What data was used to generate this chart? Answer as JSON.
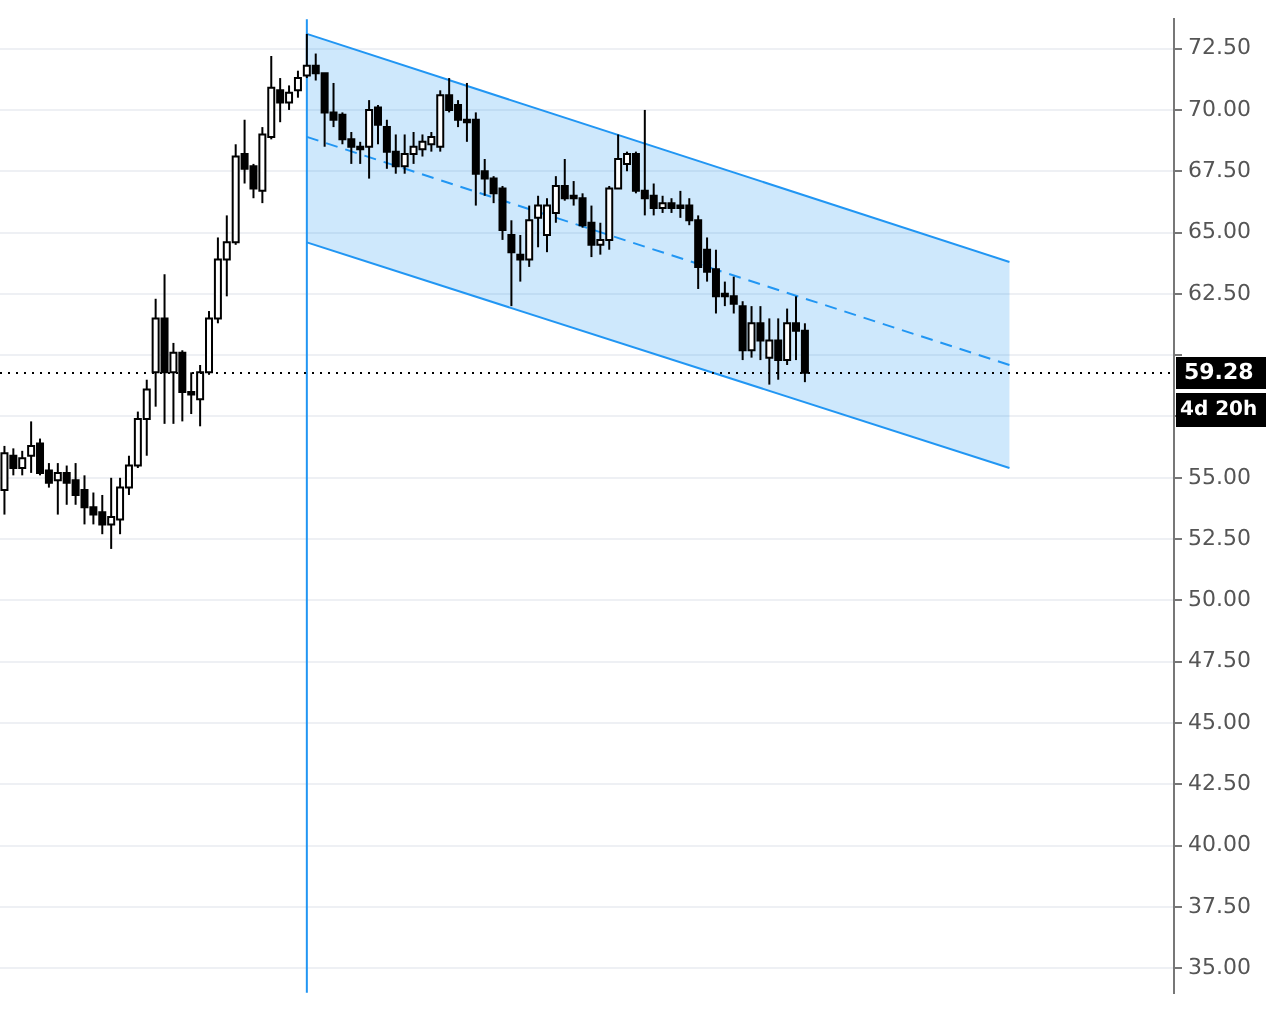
{
  "chart_data": {
    "type": "candlestick",
    "color": "#000000",
    "legend": false,
    "grid": "y",
    "tick_labels": "y",
    "colors": [
      "#ffffff",
      "#000000",
      "#ffffff",
      "#ffffff",
      "#000000",
      "#000000",
      "#ffffff",
      "#000000",
      "#000000",
      "#000000",
      "#000000",
      "#000000",
      "#ffffff",
      "#ffffff",
      "#ffffff",
      "#ffffff",
      "#ffffff",
      "#ffffff",
      "#000000",
      "#ffffff",
      "#000000",
      "#000000",
      "#ffffff",
      "#ffffff",
      "#ffffff",
      "#ffffff",
      "#ffffff",
      "#000000",
      "#000000",
      "#ffffff",
      "#ffffff",
      "#000000",
      "#ffffff",
      "#ffffff",
      "#ffffff",
      "#000000",
      "#000000",
      "#000000",
      "#000000",
      "#000000",
      "#000000",
      "#ffffff",
      "#000000",
      "#000000",
      "#000000",
      "#ffffff",
      "#ffffff",
      "#ffffff",
      "#ffffff",
      "#ffffff",
      "#000000",
      "#000000",
      "#000000",
      "#000000",
      "#000000",
      "#000000",
      "#000000",
      "#000000",
      "#000000",
      "#ffffff",
      "#ffffff",
      "#ffffff",
      "#ffffff",
      "#000000",
      "#000000",
      "#000000",
      "#000000",
      "#ffffff",
      "#ffffff",
      "#ffffff",
      "#ffffff",
      "#000000",
      "#000000",
      "#000000",
      "#ffffff",
      "#000000",
      "#000000",
      "#000000",
      "#000000",
      "#000000",
      "#000000",
      "#000000",
      "#000000",
      "#000000",
      "#ffffff",
      "#000000",
      "#ffffff",
      "#000000",
      "#ffffff",
      "#000000",
      "#000000",
      null,
      null,
      null,
      null,
      null,
      null,
      null,
      null,
      null,
      null,
      null,
      null,
      null,
      null,
      null,
      null,
      null,
      null,
      null,
      null,
      null,
      null,
      null,
      null,
      null,
      null,
      null,
      null,
      null,
      null,
      null,
      null,
      null,
      null,
      null,
      null,
      null,
      null,
      null,
      null,
      null
    ],
    "categories": [
      null,
      null,
      null,
      null,
      null,
      null,
      null,
      null,
      null,
      null,
      null,
      null,
      null,
      null,
      null,
      null,
      null,
      null,
      null,
      null,
      null,
      null,
      null,
      null,
      null,
      null,
      null,
      null,
      null,
      null,
      null,
      null,
      null,
      null,
      null,
      null,
      null,
      null,
      null,
      null,
      null,
      null,
      null,
      null,
      null,
      null,
      null,
      null,
      null,
      null,
      null,
      null,
      null,
      null,
      null,
      null,
      null,
      null,
      null,
      null,
      null,
      null,
      null,
      null,
      null,
      null,
      null,
      null,
      null,
      null,
      null,
      null,
      null,
      null,
      null,
      null,
      null,
      null,
      null,
      null,
      null,
      null,
      null,
      null,
      null,
      null,
      null,
      null,
      null,
      null,
      null,
      null,
      null,
      null,
      null,
      null,
      null,
      null,
      null,
      null,
      null,
      null,
      null,
      null,
      null,
      null,
      null,
      null,
      null,
      null,
      null,
      null,
      null,
      null,
      null,
      null,
      null,
      null,
      null,
      null,
      null,
      null,
      null,
      null,
      null,
      null,
      null,
      null,
      null,
      null,
      null,
      null
    ],
    "ohlc": [
      [
        54.5,
        56.3,
        53.5,
        56.0
      ],
      [
        55.9,
        56.2,
        55.1,
        55.4
      ],
      [
        55.4,
        56.1,
        55.1,
        55.8
      ],
      [
        55.9,
        57.3,
        55.2,
        56.3
      ],
      [
        56.4,
        56.6,
        55.1,
        55.2
      ],
      [
        55.3,
        55.6,
        54.6,
        54.8
      ],
      [
        54.9,
        55.6,
        53.5,
        55.2
      ],
      [
        55.2,
        55.5,
        53.9,
        54.8
      ],
      [
        54.9,
        55.6,
        53.9,
        54.3
      ],
      [
        54.5,
        55.1,
        53.1,
        53.8
      ],
      [
        53.8,
        54.4,
        53.1,
        53.5
      ],
      [
        53.6,
        54.3,
        52.7,
        53.1
      ],
      [
        53.1,
        55.0,
        52.1,
        53.4
      ],
      [
        53.3,
        55.0,
        52.7,
        54.6
      ],
      [
        54.6,
        55.9,
        54.3,
        55.5
      ],
      [
        55.5,
        57.7,
        55.4,
        57.4
      ],
      [
        57.4,
        59.0,
        55.9,
        58.6
      ],
      [
        59.3,
        62.3,
        57.9,
        61.5
      ],
      [
        61.5,
        63.3,
        57.2,
        59.3
      ],
      [
        59.3,
        60.5,
        57.2,
        60.1
      ],
      [
        60.1,
        60.2,
        57.3,
        58.5
      ],
      [
        58.5,
        59.3,
        57.6,
        58.4
      ],
      [
        58.2,
        59.6,
        57.1,
        59.3
      ],
      [
        59.3,
        61.8,
        59.2,
        61.5
      ],
      [
        61.5,
        64.8,
        61.3,
        63.9
      ],
      [
        63.9,
        65.7,
        62.4,
        64.6
      ],
      [
        64.6,
        68.6,
        64.5,
        68.1
      ],
      [
        68.2,
        69.6,
        67.0,
        67.6
      ],
      [
        67.7,
        67.8,
        66.4,
        66.8
      ],
      [
        66.7,
        69.3,
        66.2,
        69.0
      ],
      [
        68.9,
        72.2,
        68.8,
        70.9
      ],
      [
        70.8,
        71.3,
        69.5,
        70.3
      ],
      [
        70.3,
        71.0,
        70.0,
        70.7
      ],
      [
        70.8,
        71.6,
        70.5,
        71.3
      ],
      [
        71.4,
        73.1,
        71.3,
        71.8
      ],
      [
        71.8,
        72.3,
        71.2,
        71.5
      ],
      [
        71.5,
        71.5,
        68.5,
        69.9
      ],
      [
        69.9,
        71.1,
        69.3,
        69.6
      ],
      [
        69.8,
        69.9,
        68.6,
        68.8
      ],
      [
        68.8,
        69.1,
        67.8,
        68.5
      ],
      [
        68.5,
        68.7,
        67.8,
        68.4
      ],
      [
        68.5,
        70.4,
        67.2,
        70.0
      ],
      [
        70.1,
        70.2,
        68.6,
        69.4
      ],
      [
        69.3,
        69.6,
        67.6,
        68.3
      ],
      [
        68.3,
        69.0,
        67.4,
        67.7
      ],
      [
        67.7,
        69.0,
        67.4,
        68.2
      ],
      [
        68.2,
        69.1,
        67.8,
        68.5
      ],
      [
        68.4,
        69.0,
        68.1,
        68.7
      ],
      [
        68.6,
        69.1,
        68.3,
        68.9
      ],
      [
        68.5,
        70.8,
        68.3,
        70.6
      ],
      [
        70.6,
        71.3,
        69.9,
        70.0
      ],
      [
        70.2,
        70.4,
        69.3,
        69.6
      ],
      [
        69.6,
        71.1,
        68.7,
        69.5
      ],
      [
        69.6,
        69.9,
        66.1,
        67.4
      ],
      [
        67.5,
        68.0,
        66.5,
        67.2
      ],
      [
        67.2,
        67.3,
        66.2,
        66.6
      ],
      [
        66.8,
        66.9,
        64.7,
        65.1
      ],
      [
        64.9,
        65.5,
        62.0,
        64.2
      ],
      [
        64.1,
        64.9,
        63.0,
        63.9
      ],
      [
        63.9,
        66.1,
        63.6,
        65.5
      ],
      [
        65.6,
        66.5,
        64.4,
        66.1
      ],
      [
        64.9,
        66.4,
        64.2,
        66.1
      ],
      [
        65.8,
        67.3,
        65.4,
        66.9
      ],
      [
        66.9,
        68.0,
        66.3,
        66.4
      ],
      [
        66.5,
        67.1,
        66.1,
        66.4
      ],
      [
        66.4,
        66.6,
        65.2,
        65.3
      ],
      [
        65.4,
        66.1,
        64.0,
        64.5
      ],
      [
        64.5,
        65.4,
        64.1,
        64.7
      ],
      [
        64.7,
        66.9,
        64.3,
        66.8
      ],
      [
        66.8,
        69.0,
        66.8,
        68.0
      ],
      [
        67.8,
        68.3,
        67.5,
        68.2
      ],
      [
        68.2,
        68.3,
        66.6,
        66.7
      ],
      [
        66.7,
        70.0,
        65.7,
        66.4
      ],
      [
        66.5,
        67.0,
        65.7,
        66.0
      ],
      [
        66.0,
        66.5,
        65.8,
        66.2
      ],
      [
        66.2,
        66.4,
        65.8,
        66.0
      ],
      [
        66.1,
        66.7,
        65.6,
        66.0
      ],
      [
        66.1,
        66.4,
        65.3,
        65.5
      ],
      [
        65.5,
        65.7,
        62.7,
        63.6
      ],
      [
        64.3,
        64.8,
        63.0,
        63.4
      ],
      [
        63.5,
        64.3,
        61.7,
        62.4
      ],
      [
        62.5,
        63.0,
        62.0,
        62.4
      ],
      [
        62.4,
        63.2,
        61.7,
        62.1
      ],
      [
        62.0,
        62.2,
        59.8,
        60.2
      ],
      [
        60.2,
        62.0,
        59.9,
        61.3
      ],
      [
        61.3,
        62.0,
        59.8,
        60.6
      ],
      [
        59.9,
        61.5,
        58.8,
        60.6
      ],
      [
        60.6,
        61.5,
        59.0,
        59.8
      ],
      [
        59.8,
        61.9,
        59.6,
        61.3
      ],
      [
        61.3,
        62.4,
        59.8,
        61.0
      ],
      [
        61.0,
        61.3,
        58.9,
        59.28
      ],
      null,
      null,
      null,
      null,
      null,
      null,
      null,
      null,
      null,
      null,
      null,
      null,
      null,
      null,
      null,
      null,
      null,
      null,
      null,
      null,
      null,
      null,
      null,
      null,
      null,
      null,
      null,
      null,
      null,
      null,
      null,
      null,
      null,
      null,
      null,
      null,
      null,
      null,
      null,
      null,
      null
    ],
    "series": [
      {
        "type": "line",
        "color": "#2196f3",
        "line_style": "dashed",
        "values": [
          null,
          null,
          null,
          null,
          null,
          null,
          null,
          null,
          null,
          null,
          null,
          null,
          null,
          null,
          null,
          null,
          null,
          null,
          null,
          null,
          null,
          null,
          null,
          null,
          null,
          null,
          null,
          null,
          null,
          null,
          null,
          null,
          null,
          null,
          68.9,
          null,
          null,
          null,
          null,
          null,
          null,
          null,
          null,
          null,
          null,
          null,
          null,
          null,
          null,
          null,
          null,
          null,
          null,
          null,
          null,
          null,
          null,
          null,
          null,
          null,
          null,
          null,
          null,
          null,
          null,
          null,
          null,
          null,
          null,
          null,
          null,
          null,
          null,
          null,
          null,
          null,
          null,
          null,
          null,
          null,
          null,
          null,
          null,
          null,
          null,
          null,
          null,
          null,
          null,
          null,
          null,
          null,
          null,
          null,
          null,
          null,
          null,
          null,
          null,
          null,
          null,
          null,
          null,
          null,
          null,
          null,
          null,
          null,
          null,
          null,
          null,
          null,
          null,
          59.6,
          null,
          null,
          null,
          null,
          null,
          null,
          null,
          null,
          null,
          null,
          null,
          null,
          null,
          null,
          null,
          null,
          null,
          null
        ],
        "upper": [
          null,
          null,
          null,
          null,
          null,
          null,
          null,
          null,
          null,
          null,
          null,
          null,
          null,
          null,
          null,
          null,
          null,
          null,
          null,
          null,
          null,
          null,
          null,
          null,
          null,
          null,
          null,
          null,
          null,
          null,
          null,
          null,
          null,
          null,
          73.1,
          null,
          null,
          null,
          null,
          null,
          null,
          null,
          null,
          null,
          null,
          null,
          null,
          null,
          null,
          null,
          null,
          null,
          null,
          null,
          null,
          null,
          null,
          null,
          null,
          null,
          null,
          null,
          null,
          null,
          null,
          null,
          null,
          null,
          null,
          null,
          null,
          null,
          null,
          null,
          null,
          null,
          null,
          null,
          null,
          null,
          null,
          null,
          null,
          null,
          null,
          null,
          null,
          null,
          null,
          null,
          null,
          null,
          null,
          null,
          null,
          null,
          null,
          null,
          null,
          null,
          null,
          null,
          null,
          null,
          null,
          null,
          null,
          null,
          null,
          null,
          null,
          null,
          null,
          63.8,
          null,
          null,
          null,
          null,
          null,
          null,
          null,
          null,
          null,
          null,
          null,
          null,
          null,
          null,
          null,
          null,
          null,
          null
        ],
        "lower": [
          null,
          null,
          null,
          null,
          null,
          null,
          null,
          null,
          null,
          null,
          null,
          null,
          null,
          null,
          null,
          null,
          null,
          null,
          null,
          null,
          null,
          null,
          null,
          null,
          null,
          null,
          null,
          null,
          null,
          null,
          null,
          null,
          null,
          null,
          64.6,
          null,
          null,
          null,
          null,
          null,
          null,
          null,
          null,
          null,
          null,
          null,
          null,
          null,
          null,
          null,
          null,
          null,
          null,
          null,
          null,
          null,
          null,
          null,
          null,
          null,
          null,
          null,
          null,
          null,
          null,
          null,
          null,
          null,
          null,
          null,
          null,
          null,
          null,
          null,
          null,
          null,
          null,
          null,
          null,
          null,
          null,
          null,
          null,
          null,
          null,
          null,
          null,
          null,
          null,
          null,
          null,
          null,
          null,
          null,
          null,
          null,
          null,
          null,
          null,
          null,
          null,
          null,
          null,
          null,
          null,
          null,
          null,
          null,
          null,
          null,
          null,
          null,
          null,
          55.4,
          null,
          null,
          null,
          null,
          null,
          null,
          null,
          null,
          null,
          null,
          null,
          null,
          null,
          null,
          null,
          null,
          null,
          null
        ]
      },
      {
        "type": "line",
        "color": "#2196f3",
        "line_style": "solid",
        "values": [
          null,
          null,
          null,
          null,
          null,
          null,
          null,
          null,
          null,
          null,
          null,
          null,
          null,
          null,
          null,
          null,
          null,
          null,
          null,
          null,
          null,
          null,
          null,
          null,
          null,
          null,
          null,
          null,
          null,
          null,
          null,
          null,
          null,
          null,
          73.1,
          null,
          null,
          null,
          null,
          null,
          null,
          null,
          null,
          null,
          null,
          null,
          null,
          null,
          null,
          null,
          null,
          null,
          null,
          null,
          null,
          null,
          null,
          null,
          null,
          null,
          null,
          null,
          null,
          null,
          null,
          null,
          null,
          null,
          null,
          null,
          null,
          null,
          null,
          null,
          null,
          null,
          null,
          null,
          null,
          null,
          null,
          null,
          null,
          null,
          null,
          null,
          null,
          null,
          null,
          null,
          null,
          null,
          null,
          null,
          null,
          null,
          null,
          null,
          null,
          null,
          null,
          null,
          null,
          null,
          null,
          null,
          null,
          null,
          null,
          null,
          null,
          null,
          null,
          63.8,
          null,
          null,
          null,
          null,
          null,
          null,
          null,
          null,
          null,
          null,
          null,
          null,
          null,
          null,
          null,
          null,
          null,
          null
        ]
      },
      {
        "type": "line",
        "color": "#2196f3",
        "line_style": "solid",
        "values": [
          null,
          null,
          null,
          null,
          null,
          null,
          null,
          null,
          null,
          null,
          null,
          null,
          null,
          null,
          null,
          null,
          null,
          null,
          null,
          null,
          null,
          null,
          null,
          null,
          null,
          null,
          null,
          null,
          null,
          null,
          null,
          null,
          null,
          null,
          64.6,
          null,
          null,
          null,
          null,
          null,
          null,
          null,
          null,
          null,
          null,
          null,
          null,
          null,
          null,
          null,
          null,
          null,
          null,
          null,
          null,
          null,
          null,
          null,
          null,
          null,
          null,
          null,
          null,
          null,
          null,
          null,
          null,
          null,
          null,
          null,
          null,
          null,
          null,
          null,
          null,
          null,
          null,
          null,
          null,
          null,
          null,
          null,
          null,
          null,
          null,
          null,
          null,
          null,
          null,
          null,
          null,
          null,
          null,
          null,
          null,
          null,
          null,
          null,
          null,
          null,
          null,
          null,
          null,
          null,
          null,
          null,
          null,
          null,
          null,
          null,
          null,
          null,
          null,
          55.4,
          null,
          null,
          null,
          null,
          null,
          null,
          null,
          null,
          null,
          null,
          null,
          null,
          null,
          null,
          null,
          null,
          null,
          null
        ]
      }
    ],
    "ylim": [
      34.0,
      73.7
    ],
    "yticks": [
      {
        "value": 35,
        "label": "35.00"
      },
      {
        "value": 37.5,
        "label": "37.50"
      },
      {
        "value": 40,
        "label": "40.00"
      },
      {
        "value": 42.5,
        "label": "42.50"
      },
      {
        "value": 45,
        "label": "45.00"
      },
      {
        "value": 47.5,
        "label": "47.50"
      },
      {
        "value": 50,
        "label": "50.00"
      },
      {
        "value": 52.5,
        "label": "52.50"
      },
      {
        "value": 55,
        "label": "55.00"
      },
      {
        "value": 57.5,
        "label": null
      },
      {
        "value": 60,
        "label": null
      },
      {
        "value": 62.5,
        "label": "62.50"
      },
      {
        "value": 65,
        "label": "65.00"
      },
      {
        "value": 67.5,
        "label": "67.50"
      },
      {
        "value": 70,
        "label": "70.00"
      },
      {
        "value": 72.5,
        "label": "72.50"
      }
    ],
    "ref_lines": [
      {
        "axis": "y",
        "value": 59.28,
        "label": "59.28",
        "color": "#000000",
        "line_style": "dotted"
      }
    ],
    "annotations": [
      "4d 20h"
    ]
  }
}
